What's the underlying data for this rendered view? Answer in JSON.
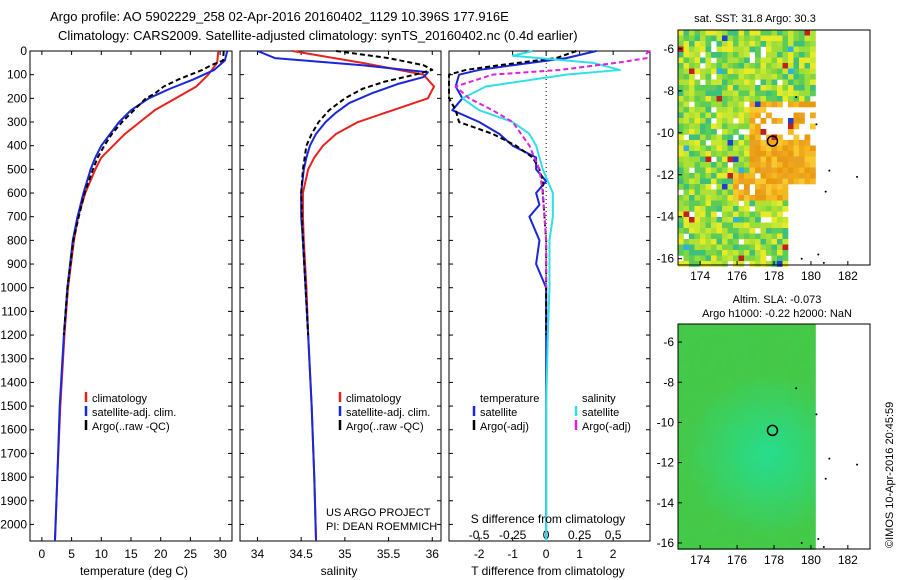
{
  "header": {
    "line1": "Argo profile: AO 5902229_258 02-Apr-2016 20160402_1129 10.396S 177.916E",
    "line2": "Climatology: CARS2009. Satellite-adjusted climatology: synTS_20160402.nc (0.4d earlier)"
  },
  "credit": {
    "project": "US ARGO PROJECT",
    "pi": "PI: DEAN ROEMMICH",
    "stamp": "©IMOS 10-Apr-2016 20:45:59"
  },
  "colors": {
    "climatology": "#e8211c",
    "satellite": "#1a26d9",
    "argo": "#000000",
    "sat_diff_s": "#2fe0e6",
    "argo_diff_s": "#e020e0"
  },
  "chart_data": [
    {
      "id": "temperature",
      "type": "line",
      "xlabel": "temperature (deg C)",
      "ylabel": "",
      "xlim": [
        -2,
        32
      ],
      "ylim": [
        2070,
        0
      ],
      "xticks": [
        0,
        5,
        10,
        15,
        20,
        25,
        30
      ],
      "yticks": [
        0,
        100,
        200,
        300,
        400,
        500,
        600,
        700,
        800,
        900,
        1000,
        1100,
        1200,
        1300,
        1400,
        1500,
        1600,
        1700,
        1800,
        1900,
        2000
      ],
      "legend": [
        "climatology",
        "satellite-adj. clim.",
        "Argo(..raw -QC)"
      ],
      "series": [
        {
          "name": "climatology",
          "color": "#e8211c",
          "dash": "",
          "depth": [
            0,
            50,
            100,
            150,
            200,
            250,
            300,
            350,
            400,
            450,
            500,
            600,
            700,
            800,
            1000,
            1200,
            1500,
            1800,
            2070
          ],
          "values": [
            29.7,
            29.5,
            28.0,
            26.0,
            22.5,
            19.0,
            16.5,
            14.0,
            12.0,
            10.0,
            9.0,
            7.3,
            6.1,
            5.4,
            4.4,
            3.8,
            3.1,
            2.6,
            2.2
          ]
        },
        {
          "name": "satellite",
          "color": "#1a26d9",
          "dash": "",
          "depth": [
            0,
            40,
            80,
            120,
            160,
            200,
            250,
            300,
            350,
            400,
            450,
            500,
            600,
            700,
            800,
            1000,
            1200,
            1500,
            1800,
            2070
          ],
          "values": [
            31.2,
            30.8,
            29.0,
            25.5,
            21.5,
            18.0,
            15.0,
            13.0,
            11.5,
            10.0,
            9.0,
            8.2,
            7.0,
            6.0,
            5.2,
            4.3,
            3.7,
            3.0,
            2.6,
            2.2
          ]
        },
        {
          "name": "Argo(..raw -QC)",
          "color": "#000000",
          "dash": "5,3",
          "depth": [
            0,
            40,
            60,
            80,
            100,
            120,
            150,
            180,
            200,
            250,
            300,
            350,
            400,
            450,
            500,
            600,
            700,
            800,
            1000,
            1200
          ],
          "values": [
            30.6,
            30.5,
            28.5,
            27.0,
            25.0,
            23.0,
            20.5,
            19.0,
            17.5,
            15.5,
            13.5,
            11.8,
            10.5,
            9.4,
            8.6,
            7.2,
            6.2,
            5.3,
            4.3,
            3.7
          ]
        }
      ]
    },
    {
      "id": "salinity",
      "type": "line",
      "xlabel": "salinity",
      "ylabel": "",
      "xlim": [
        33.8,
        36.1
      ],
      "ylim": [
        2070,
        0
      ],
      "xticks": [
        34,
        34.5,
        35,
        35.5,
        36
      ],
      "legend": [
        "climatology",
        "satellite-adj. clim.",
        "Argo(..raw -QC)"
      ],
      "series": [
        {
          "name": "climatology",
          "color": "#e8211c",
          "dash": "",
          "depth": [
            0,
            50,
            100,
            150,
            200,
            250,
            300,
            350,
            400,
            450,
            500,
            600,
            700,
            800,
            1000,
            1200,
            1500,
            1800,
            2070
          ],
          "values": [
            34.4,
            35.2,
            35.9,
            36.02,
            35.95,
            35.55,
            35.15,
            34.9,
            34.75,
            34.65,
            34.58,
            34.52,
            34.52,
            34.53,
            34.56,
            34.58,
            34.62,
            34.65,
            34.67
          ]
        },
        {
          "name": "satellite",
          "color": "#1a26d9",
          "dash": "",
          "depth": [
            0,
            30,
            60,
            90,
            110,
            140,
            180,
            220,
            260,
            300,
            350,
            400,
            450,
            500,
            600,
            700,
            800,
            1000,
            1200,
            1500,
            1800,
            2070
          ],
          "values": [
            34.0,
            34.2,
            35.2,
            35.95,
            35.9,
            35.6,
            35.3,
            35.05,
            34.9,
            34.78,
            34.67,
            34.6,
            34.56,
            34.53,
            34.5,
            34.5,
            34.52,
            34.55,
            34.58,
            34.62,
            34.65,
            34.67
          ]
        },
        {
          "name": "Argo(..raw -QC)",
          "color": "#000000",
          "dash": "5,3",
          "depth": [
            0,
            30,
            60,
            80,
            100,
            130,
            160,
            200,
            250,
            300,
            350,
            400,
            450,
            500,
            600,
            700,
            800,
            1000,
            1200
          ],
          "values": [
            34.9,
            35.5,
            35.9,
            36.0,
            35.8,
            35.45,
            35.2,
            35.0,
            34.82,
            34.7,
            34.62,
            34.56,
            34.54,
            34.52,
            34.5,
            34.51,
            34.52,
            34.55,
            34.58
          ]
        }
      ]
    },
    {
      "id": "difference",
      "type": "line",
      "xlabel": "T difference from climatology",
      "x2label": "S difference from climatology",
      "xlim": [
        -2.9,
        3.1
      ],
      "ylim": [
        2070,
        0
      ],
      "xticks": [
        -2,
        -1,
        0,
        1,
        2
      ],
      "x2ticks": [
        "-0.5",
        "-0.25",
        "0",
        "0.25",
        "0.5"
      ],
      "legend_titles": [
        "temperature",
        "salinity"
      ],
      "legend": [
        "satellite",
        "Argo(-adj)",
        "satellite",
        "Argo(-adj)"
      ],
      "series": [
        {
          "name": "temperature satellite",
          "color": "#1a26d9",
          "dash": "",
          "depth": [
            0,
            30,
            60,
            80,
            100,
            150,
            200,
            250,
            300,
            350,
            400,
            450,
            500,
            550,
            600,
            650,
            700,
            800,
            900,
            1000,
            1200,
            1500,
            1800,
            2070
          ],
          "values": [
            1.5,
            0.6,
            -1.0,
            -2.0,
            -2.6,
            -2.7,
            -2.5,
            -2.8,
            -2.0,
            -1.4,
            -1.0,
            -0.3,
            -0.3,
            0.0,
            -0.3,
            -0.2,
            -0.5,
            -0.2,
            -0.3,
            0.0,
            0.0,
            0.0,
            0.0,
            0.0
          ]
        },
        {
          "name": "temperature Argo",
          "color": "#000000",
          "dash": "5,3",
          "depth": [
            0,
            30,
            60,
            80,
            100,
            150,
            200,
            250,
            300,
            350,
            400,
            450,
            500,
            550,
            600,
            700,
            800,
            1000,
            1200
          ],
          "values": [
            0.9,
            0.3,
            -1.4,
            -2.4,
            -3.0,
            -3.0,
            -3.0,
            -2.7,
            -2.6,
            -1.6,
            -0.9,
            -0.4,
            -0.2,
            -0.1,
            -0.1,
            -0.05,
            0.0,
            0.0,
            0.0
          ]
        },
        {
          "name": "salinity satellite",
          "color": "#2fe0e6",
          "dash": "",
          "depth": [
            0,
            20,
            50,
            80,
            100,
            150,
            200,
            250,
            300,
            350,
            400,
            450,
            500,
            600,
            700,
            800,
            1000,
            1200,
            1500,
            1800,
            2070
          ],
          "values": [
            -0.4,
            -1.0,
            1.4,
            2.2,
            0.6,
            -1.8,
            -2.5,
            -2.0,
            -1.0,
            -0.5,
            -0.3,
            -0.2,
            -0.1,
            0.2,
            0.2,
            0.1,
            0.1,
            0.05,
            0.0,
            0.0,
            0.0
          ]
        },
        {
          "name": "salinity Argo",
          "color": "#e020e0",
          "dash": "5,3",
          "depth": [
            0,
            10,
            30,
            50,
            80,
            100,
            150,
            200,
            250,
            300,
            400,
            500,
            600,
            800,
            1000
          ],
          "values": [
            3.1,
            3.0,
            3.0,
            2.1,
            0.4,
            -1.6,
            -2.7,
            -2.3,
            -1.6,
            -1.0,
            -0.5,
            -0.2,
            -0.1,
            0.0,
            0.0
          ]
        }
      ]
    },
    {
      "id": "sst_map",
      "type": "heatmap",
      "title": "sat. SST: 31.8  Argo: 30.3",
      "xlim": [
        172.8,
        183.2
      ],
      "ylim": [
        -16.3,
        -5.1
      ],
      "xticks": [
        174,
        176,
        178,
        180,
        182
      ],
      "yticks": [
        -6,
        -8,
        -10,
        -12,
        -14,
        -16
      ],
      "marker": {
        "lon": 177.916,
        "lat": -10.396
      }
    },
    {
      "id": "sla_map",
      "type": "heatmap",
      "title": "Altim. SLA: -0.073",
      "subtitle": "Argo h1000: -0.22 h2000: NaN",
      "xlim": [
        172.8,
        183.2
      ],
      "ylim": [
        -16.3,
        -5.1
      ],
      "xticks": [
        174,
        176,
        178,
        180,
        182
      ],
      "yticks": [
        -6,
        -8,
        -10,
        -12,
        -14,
        -16
      ],
      "marker": {
        "lon": 177.916,
        "lat": -10.396
      }
    }
  ]
}
